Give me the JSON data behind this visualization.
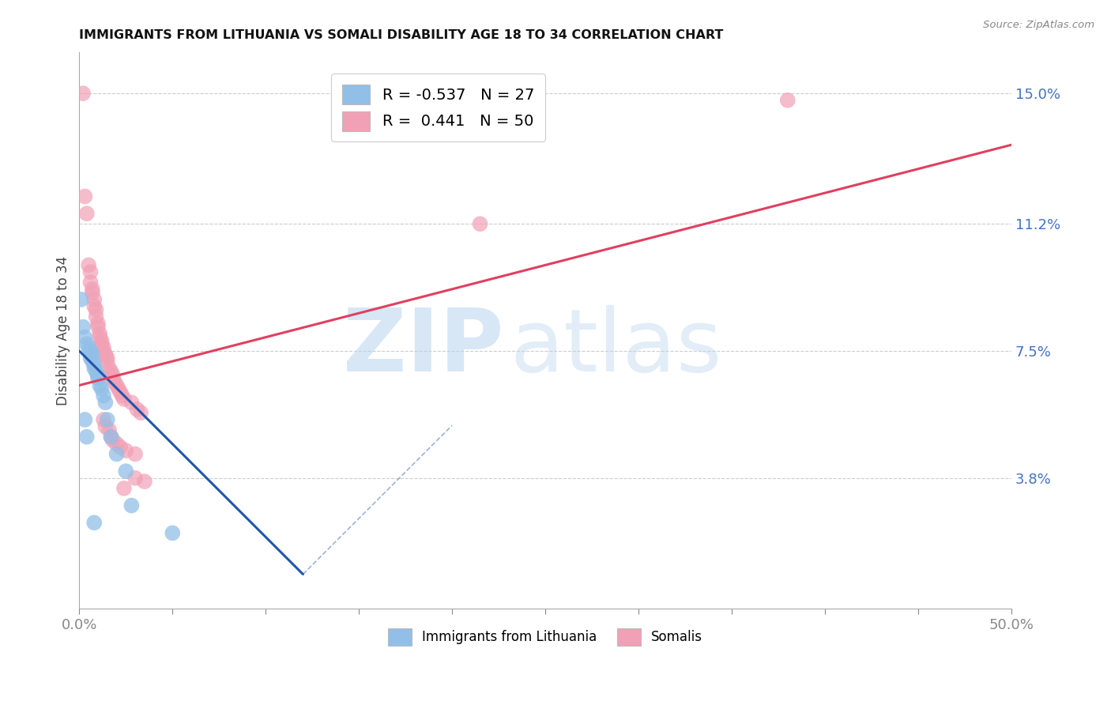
{
  "title": "IMMIGRANTS FROM LITHUANIA VS SOMALI DISABILITY AGE 18 TO 34 CORRELATION CHART",
  "source": "Source: ZipAtlas.com",
  "ylabel": "Disability Age 18 to 34",
  "yticks": [
    0.0,
    0.038,
    0.075,
    0.112,
    0.15
  ],
  "ytick_labels": [
    "",
    "3.8%",
    "7.5%",
    "11.2%",
    "15.0%"
  ],
  "xlim": [
    0.0,
    0.5
  ],
  "ylim": [
    0.0,
    0.162
  ],
  "watermark_zip": "ZIP",
  "watermark_atlas": "atlas",
  "legend_blue_r": "-0.537",
  "legend_blue_n": "27",
  "legend_pink_r": "0.441",
  "legend_pink_n": "50",
  "blue_color": "#92BFE8",
  "pink_color": "#F2A0B5",
  "blue_line_color": "#2255AA",
  "pink_line_color": "#E04060",
  "grid_color": "#CCCCCC",
  "blue_scatter": [
    [
      0.001,
      0.09
    ],
    [
      0.002,
      0.082
    ],
    [
      0.003,
      0.079
    ],
    [
      0.004,
      0.077
    ],
    [
      0.005,
      0.076
    ],
    [
      0.006,
      0.075
    ],
    [
      0.006,
      0.073
    ],
    [
      0.007,
      0.074
    ],
    [
      0.007,
      0.072
    ],
    [
      0.008,
      0.071
    ],
    [
      0.008,
      0.07
    ],
    [
      0.009,
      0.069
    ],
    [
      0.01,
      0.068
    ],
    [
      0.01,
      0.067
    ],
    [
      0.011,
      0.065
    ],
    [
      0.012,
      0.064
    ],
    [
      0.013,
      0.062
    ],
    [
      0.014,
      0.06
    ],
    [
      0.003,
      0.055
    ],
    [
      0.004,
      0.05
    ],
    [
      0.015,
      0.055
    ],
    [
      0.017,
      0.05
    ],
    [
      0.02,
      0.045
    ],
    [
      0.025,
      0.04
    ],
    [
      0.05,
      0.022
    ],
    [
      0.028,
      0.03
    ],
    [
      0.008,
      0.025
    ]
  ],
  "pink_scatter": [
    [
      0.002,
      0.15
    ],
    [
      0.003,
      0.12
    ],
    [
      0.004,
      0.115
    ],
    [
      0.005,
      0.1
    ],
    [
      0.006,
      0.098
    ],
    [
      0.006,
      0.095
    ],
    [
      0.007,
      0.093
    ],
    [
      0.007,
      0.092
    ],
    [
      0.008,
      0.09
    ],
    [
      0.008,
      0.088
    ],
    [
      0.009,
      0.087
    ],
    [
      0.009,
      0.085
    ],
    [
      0.01,
      0.083
    ],
    [
      0.01,
      0.082
    ],
    [
      0.011,
      0.08
    ],
    [
      0.011,
      0.079
    ],
    [
      0.012,
      0.078
    ],
    [
      0.012,
      0.077
    ],
    [
      0.013,
      0.076
    ],
    [
      0.013,
      0.075
    ],
    [
      0.014,
      0.074
    ],
    [
      0.015,
      0.073
    ],
    [
      0.015,
      0.072
    ],
    [
      0.016,
      0.07
    ],
    [
      0.017,
      0.069
    ],
    [
      0.018,
      0.068
    ],
    [
      0.018,
      0.067
    ],
    [
      0.019,
      0.066
    ],
    [
      0.02,
      0.065
    ],
    [
      0.021,
      0.064
    ],
    [
      0.022,
      0.063
    ],
    [
      0.023,
      0.062
    ],
    [
      0.024,
      0.061
    ],
    [
      0.013,
      0.055
    ],
    [
      0.014,
      0.053
    ],
    [
      0.016,
      0.052
    ],
    [
      0.017,
      0.05
    ],
    [
      0.018,
      0.049
    ],
    [
      0.02,
      0.048
    ],
    [
      0.022,
      0.047
    ],
    [
      0.025,
      0.046
    ],
    [
      0.03,
      0.045
    ],
    [
      0.028,
      0.06
    ],
    [
      0.031,
      0.058
    ],
    [
      0.033,
      0.057
    ],
    [
      0.03,
      0.038
    ],
    [
      0.035,
      0.037
    ],
    [
      0.024,
      0.035
    ],
    [
      0.38,
      0.148
    ],
    [
      0.215,
      0.112
    ]
  ],
  "pink_line_x": [
    0.0,
    0.5
  ],
  "pink_line_y": [
    0.065,
    0.135
  ],
  "blue_line_x": [
    0.0,
    0.12
  ],
  "blue_line_y": [
    0.075,
    0.01
  ]
}
